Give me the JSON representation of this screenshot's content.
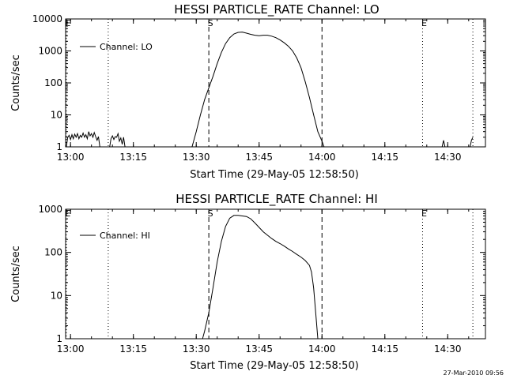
{
  "footer": {
    "timestamp": "27-Mar-2010 09:56"
  },
  "chart_data": [
    {
      "type": "line",
      "title": "HESSI PARTICLE_RATE Channel: LO",
      "xlabel": "Start Time (29-May-05 12:58:50)",
      "ylabel": "Counts/sec",
      "y_scale": "log",
      "ylim": [
        1,
        10000
      ],
      "xlim": [
        "12:58:50",
        "14:39:00"
      ],
      "y_ticks": [
        "1",
        "10",
        "100",
        "1000",
        "10000"
      ],
      "x_ticks": [
        "13:00",
        "13:15",
        "13:30",
        "13:45",
        "14:00",
        "14:15",
        "14:30"
      ],
      "legend": {
        "label": "Channel: LO",
        "placement": "top-left"
      },
      "markers": [
        {
          "label": "E",
          "time": "12:59:00",
          "style": "dotted"
        },
        {
          "label": "",
          "time": "13:09:00",
          "style": "dotted"
        },
        {
          "label": "S",
          "time": "13:33:00",
          "style": "dashed"
        },
        {
          "label": "",
          "time": "14:00:00",
          "style": "dashed"
        },
        {
          "label": "E",
          "time": "14:24:00",
          "style": "dotted"
        },
        {
          "label": "",
          "time": "14:36:00",
          "style": "dotted"
        }
      ],
      "series": [
        {
          "name": "Channel: LO",
          "segments": [
            [
              [
                "12:59:00",
                1
              ],
              [
                "12:59:20",
                2
              ],
              [
                "12:59:40",
                2.3
              ],
              [
                "13:00:00",
                1.7
              ],
              [
                "13:00:20",
                2.4
              ],
              [
                "13:00:40",
                1.8
              ],
              [
                "13:01:00",
                2.5
              ],
              [
                "13:01:20",
                2
              ],
              [
                "13:01:40",
                2.6
              ],
              [
                "13:02:00",
                1.8
              ],
              [
                "13:02:20",
                2.3
              ],
              [
                "13:02:40",
                2
              ],
              [
                "13:03:00",
                2.7
              ],
              [
                "13:03:20",
                2
              ],
              [
                "13:03:40",
                2.4
              ],
              [
                "13:04:00",
                1.8
              ],
              [
                "13:04:20",
                3
              ],
              [
                "13:04:40",
                2.2
              ],
              [
                "13:05:00",
                2.6
              ],
              [
                "13:05:20",
                2
              ],
              [
                "13:05:40",
                2.8
              ],
              [
                "13:06:00",
                2.1
              ],
              [
                "13:06:20",
                1.6
              ],
              [
                "13:06:40",
                2.1
              ],
              [
                "13:07:00",
                1
              ],
              [
                "13:07:20",
                1
              ]
            ],
            [
              [
                "13:09:20",
                1
              ],
              [
                "13:09:40",
                1.8
              ],
              [
                "13:10:00",
                2.2
              ],
              [
                "13:10:20",
                1.7
              ],
              [
                "13:10:40",
                2.1
              ],
              [
                "13:11:00",
                2
              ],
              [
                "13:11:20",
                2.6
              ],
              [
                "13:11:40",
                1.5
              ],
              [
                "13:12:00",
                1.9
              ],
              [
                "13:12:20",
                1.2
              ],
              [
                "13:12:40",
                2
              ],
              [
                "13:13:00",
                1
              ],
              [
                "13:14:00",
                1
              ]
            ],
            [
              [
                "14:28:40",
                1
              ],
              [
                "14:29:00",
                1.6
              ],
              [
                "14:29:20",
                1
              ]
            ],
            [
              [
                "14:35:20",
                1
              ],
              [
                "14:35:40",
                1.6
              ],
              [
                "14:36:00",
                2
              ]
            ],
            [
              [
                "13:29:00",
                1
              ],
              [
                "13:30:00",
                3
              ],
              [
                "13:31:00",
                10
              ],
              [
                "13:32:00",
                30
              ],
              [
                "13:33:00",
                70
              ],
              [
                "13:34:00",
                160
              ],
              [
                "13:35:00",
                400
              ],
              [
                "13:36:00",
                900
              ],
              [
                "13:37:00",
                1700
              ],
              [
                "13:38:00",
                2600
              ],
              [
                "13:39:00",
                3400
              ],
              [
                "13:40:00",
                3800
              ],
              [
                "13:41:00",
                3900
              ],
              [
                "13:42:00",
                3600
              ],
              [
                "13:43:00",
                3300
              ],
              [
                "13:44:00",
                3100
              ],
              [
                "13:45:00",
                3000
              ],
              [
                "13:46:00",
                3100
              ],
              [
                "13:47:00",
                3100
              ],
              [
                "13:48:00",
                2900
              ],
              [
                "13:49:00",
                2600
              ],
              [
                "13:50:00",
                2200
              ],
              [
                "13:51:00",
                1800
              ],
              [
                "13:52:00",
                1400
              ],
              [
                "13:53:00",
                1000
              ],
              [
                "13:54:00",
                600
              ],
              [
                "13:55:00",
                300
              ],
              [
                "13:56:00",
                110
              ],
              [
                "13:57:00",
                35
              ],
              [
                "13:58:00",
                10
              ],
              [
                "13:59:00",
                3
              ],
              [
                "14:00:00",
                1.5
              ],
              [
                "14:00:30",
                1
              ]
            ]
          ]
        }
      ]
    },
    {
      "type": "line",
      "title": "HESSI PARTICLE_RATE Channel: HI",
      "xlabel": "Start Time (29-May-05 12:58:50)",
      "ylabel": "Counts/sec",
      "y_scale": "log",
      "ylim": [
        1,
        1000
      ],
      "xlim": [
        "12:58:50",
        "14:39:00"
      ],
      "y_ticks": [
        "1",
        "10",
        "100",
        "1000"
      ],
      "x_ticks": [
        "13:00",
        "13:15",
        "13:30",
        "13:45",
        "14:00",
        "14:15",
        "14:30"
      ],
      "legend": {
        "label": "Channel: HI",
        "placement": "top-left"
      },
      "markers": [
        {
          "label": "E",
          "time": "12:59:00",
          "style": "dotted"
        },
        {
          "label": "",
          "time": "13:09:00",
          "style": "dotted"
        },
        {
          "label": "S",
          "time": "13:33:00",
          "style": "dashed"
        },
        {
          "label": "",
          "time": "14:00:00",
          "style": "dashed"
        },
        {
          "label": "E",
          "time": "14:24:00",
          "style": "dotted"
        },
        {
          "label": "",
          "time": "14:36:00",
          "style": "dotted"
        }
      ],
      "series": [
        {
          "name": "Channel: HI",
          "segments": [
            [
              [
                "13:31:30",
                1
              ],
              [
                "13:32:00",
                1.5
              ],
              [
                "13:33:00",
                4
              ],
              [
                "13:34:00",
                15
              ],
              [
                "13:35:00",
                60
              ],
              [
                "13:36:00",
                180
              ],
              [
                "13:37:00",
                400
              ],
              [
                "13:38:00",
                620
              ],
              [
                "13:39:00",
                720
              ],
              [
                "13:40:00",
                720
              ],
              [
                "13:41:00",
                700
              ],
              [
                "13:42:00",
                680
              ],
              [
                "13:43:00",
                600
              ],
              [
                "13:44:00",
                480
              ],
              [
                "13:45:00",
                380
              ],
              [
                "13:46:00",
                300
              ],
              [
                "13:47:00",
                250
              ],
              [
                "13:48:00",
                210
              ],
              [
                "13:49:00",
                180
              ],
              [
                "13:50:00",
                160
              ],
              [
                "13:51:00",
                140
              ],
              [
                "13:52:00",
                120
              ],
              [
                "13:53:00",
                105
              ],
              [
                "13:54:00",
                90
              ],
              [
                "13:55:00",
                78
              ],
              [
                "13:56:00",
                65
              ],
              [
                "13:57:00",
                50
              ],
              [
                "13:57:30",
                35
              ],
              [
                "13:58:00",
                15
              ],
              [
                "13:58:30",
                4
              ],
              [
                "13:59:00",
                1
              ]
            ]
          ]
        }
      ]
    }
  ]
}
